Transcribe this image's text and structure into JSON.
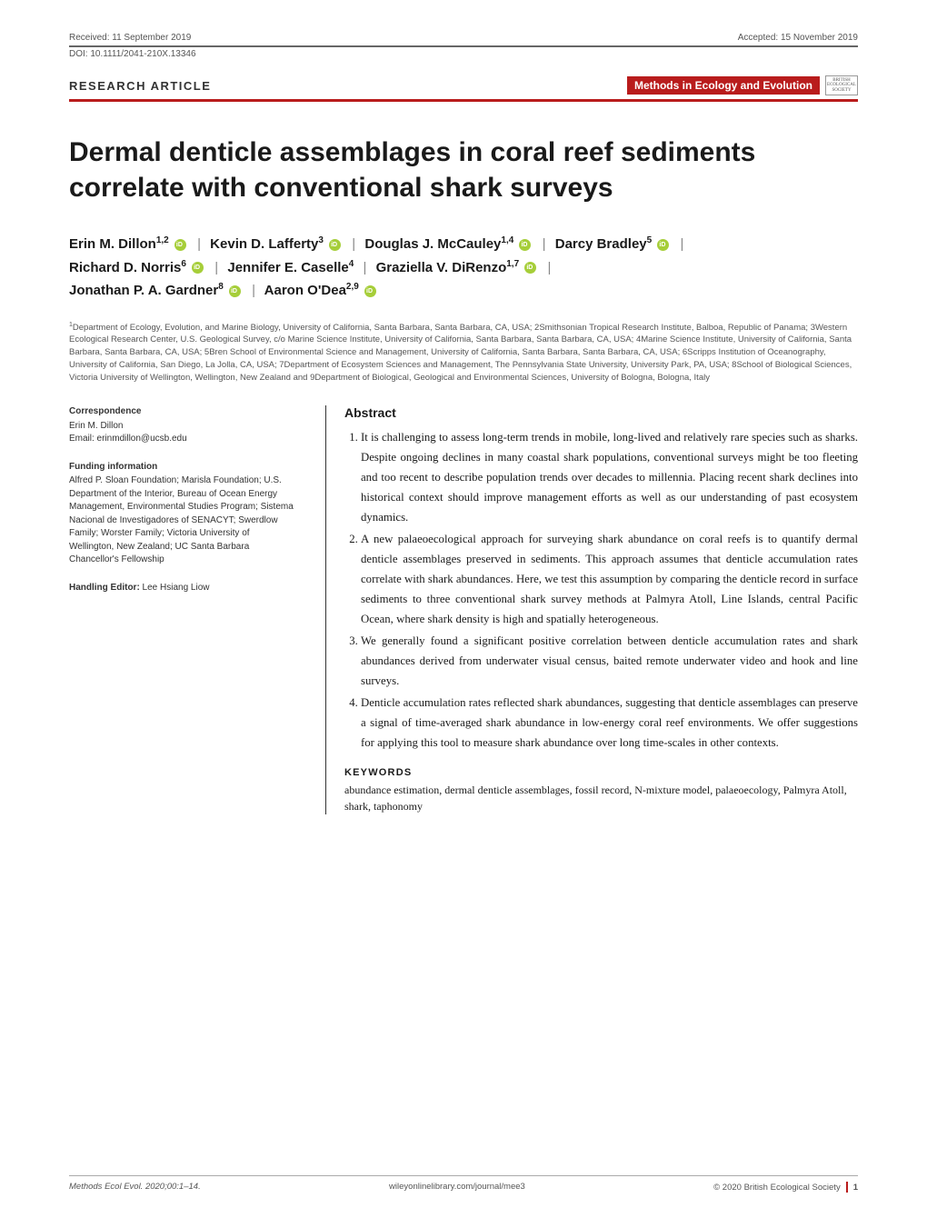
{
  "header": {
    "received": "Received: 11 September 2019",
    "accepted": "Accepted: 15 November 2019",
    "doi": "DOI: 10.1111/2041-210X.13346"
  },
  "badges": {
    "article_type": "RESEARCH ARTICLE",
    "journal_name": "Methods in Ecology and Evolution",
    "society_line1": "BRITISH",
    "society_line2": "ECOLOGICAL",
    "society_line3": "SOCIETY"
  },
  "title": "Dermal denticle assemblages in coral reef sediments correlate with conventional shark surveys",
  "authors": {
    "a1": {
      "name": "Erin M. Dillon",
      "sup": "1,2"
    },
    "a2": {
      "name": "Kevin D. Lafferty",
      "sup": "3"
    },
    "a3": {
      "name": "Douglas J. McCauley",
      "sup": "1,4"
    },
    "a4": {
      "name": "Darcy Bradley",
      "sup": "5"
    },
    "a5": {
      "name": "Richard D. Norris",
      "sup": "6"
    },
    "a6": {
      "name": "Jennifer E. Caselle",
      "sup": "4"
    },
    "a7": {
      "name": "Graziella V. DiRenzo",
      "sup": "1,7"
    },
    "a8": {
      "name": "Jonathan P. A. Gardner",
      "sup": "8"
    },
    "a9": {
      "name": "Aaron O'Dea",
      "sup": "2,9"
    }
  },
  "affiliations": "Department of Ecology, Evolution, and Marine Biology, University of California, Santa Barbara, Santa Barbara, CA, USA; 2Smithsonian Tropical Research Institute, Balboa, Republic of Panama; 3Western Ecological Research Center, U.S. Geological Survey, c/o Marine Science Institute, University of California, Santa Barbara, Santa Barbara, CA, USA; 4Marine Science Institute, University of California, Santa Barbara, Santa Barbara, CA, USA; 5Bren School of Environmental Science and Management, University of California, Santa Barbara, Santa Barbara, CA, USA; 6Scripps Institution of Oceanography, University of California, San Diego, La Jolla, CA, USA; 7Department of Ecosystem Sciences and Management, The Pennsylvania State University, University Park, PA, USA; 8School of Biological Sciences, Victoria University of Wellington, Wellington, New Zealand and 9Department of Biological, Geological and Environmental Sciences, University of Bologna, Bologna, Italy",
  "correspondence": {
    "heading": "Correspondence",
    "name": "Erin M. Dillon",
    "email": "Email: erinmdillon@ucsb.edu"
  },
  "funding": {
    "heading": "Funding information",
    "body": "Alfred P. Sloan Foundation; Marisla Foundation; U.S. Department of the Interior, Bureau of Ocean Energy Management, Environmental Studies Program; Sistema Nacional de Investigadores of SENACYT; Swerdlow Family; Worster Family; Victoria University of Wellington, New Zealand; UC Santa Barbara Chancellor's Fellowship"
  },
  "editor": {
    "heading": "Handling Editor:",
    "name": " Lee Hsiang Liow"
  },
  "abstract": {
    "heading": "Abstract",
    "items": [
      "It is challenging to assess long-term trends in mobile, long-lived and relatively rare species such as sharks. Despite ongoing declines in many coastal shark populations, conventional surveys might be too fleeting and too recent to describe population trends over decades to millennia. Placing recent shark declines into historical context should improve management efforts as well as our understanding of past ecosystem dynamics.",
      "A new palaeoecological approach for surveying shark abundance on coral reefs is to quantify dermal denticle assemblages preserved in sediments. This approach assumes that denticle accumulation rates correlate with shark abundances. Here, we test this assumption by comparing the denticle record in surface sediments to three conventional shark survey methods at Palmyra Atoll, Line Islands, central Pacific Ocean, where shark density is high and spatially heterogeneous.",
      "We generally found a significant positive correlation between denticle accumulation rates and shark abundances derived from underwater visual census, baited remote underwater video and hook and line surveys.",
      "Denticle accumulation rates reflected shark abundances, suggesting that denticle assemblages can preserve a signal of time-averaged shark abundance in low-energy coral reef environments. We offer suggestions for applying this tool to measure shark abundance over long time-scales in other contexts."
    ]
  },
  "keywords": {
    "heading": "KEYWORDS",
    "text": "abundance estimation, dermal denticle assemblages, fossil record, N-mixture model, palaeoecology, Palmyra Atoll, shark, taphonomy"
  },
  "footer": {
    "citation": "Methods Ecol Evol. 2020;00:1–14.",
    "url": "wileyonlinelibrary.com/journal/mee3",
    "copyright": "© 2020 British Ecological Society",
    "page": "1"
  }
}
